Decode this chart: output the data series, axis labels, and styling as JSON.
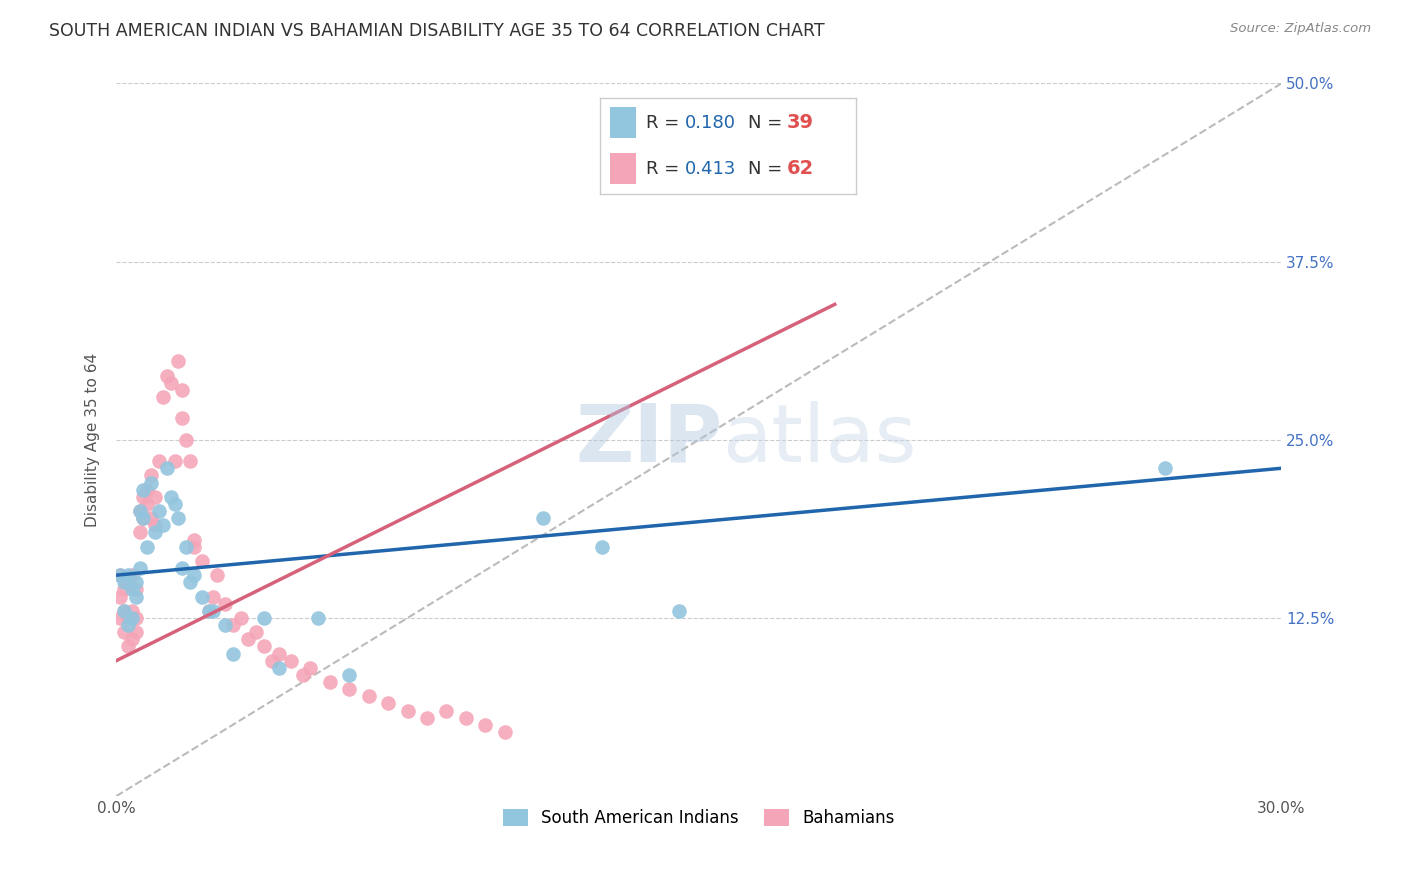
{
  "title": "SOUTH AMERICAN INDIAN VS BAHAMIAN DISABILITY AGE 35 TO 64 CORRELATION CHART",
  "source": "Source: ZipAtlas.com",
  "ylabel": "Disability Age 35 to 64",
  "xmin": 0.0,
  "xmax": 0.3,
  "ymin": 0.0,
  "ymax": 0.5,
  "xticks": [
    0.0,
    0.05,
    0.1,
    0.15,
    0.2,
    0.25,
    0.3
  ],
  "xticklabels": [
    "0.0%",
    "",
    "",
    "",
    "",
    "",
    "30.0%"
  ],
  "yticks": [
    0.0,
    0.125,
    0.25,
    0.375,
    0.5
  ],
  "yticklabels_right": [
    "",
    "12.5%",
    "25.0%",
    "37.5%",
    "50.0%"
  ],
  "blue_color": "#92c5de",
  "pink_color": "#f4a6b8",
  "line_blue": "#2166ac",
  "line_pink": "#d6617a",
  "ref_line_color": "#bbbbbb",
  "grid_color": "#cccccc",
  "tick_color": "#4472c4",
  "R_blue": 0.18,
  "N_blue": 39,
  "R_pink": 0.413,
  "N_pink": 62,
  "legend_label_blue": "South American Indians",
  "legend_label_pink": "Bahamians",
  "blue_line_x": [
    0.0,
    0.3
  ],
  "blue_line_y": [
    0.155,
    0.23
  ],
  "pink_line_x": [
    0.0,
    0.185
  ],
  "pink_line_y": [
    0.095,
    0.345
  ],
  "blue_scatter_x": [
    0.001,
    0.002,
    0.002,
    0.003,
    0.003,
    0.004,
    0.004,
    0.005,
    0.005,
    0.006,
    0.006,
    0.007,
    0.007,
    0.008,
    0.009,
    0.01,
    0.011,
    0.012,
    0.013,
    0.014,
    0.015,
    0.016,
    0.017,
    0.018,
    0.019,
    0.02,
    0.022,
    0.024,
    0.025,
    0.028,
    0.03,
    0.038,
    0.042,
    0.052,
    0.06,
    0.11,
    0.125,
    0.145,
    0.27
  ],
  "blue_scatter_y": [
    0.155,
    0.13,
    0.15,
    0.155,
    0.12,
    0.145,
    0.125,
    0.15,
    0.14,
    0.16,
    0.2,
    0.215,
    0.195,
    0.175,
    0.22,
    0.185,
    0.2,
    0.19,
    0.23,
    0.21,
    0.205,
    0.195,
    0.16,
    0.175,
    0.15,
    0.155,
    0.14,
    0.13,
    0.13,
    0.12,
    0.1,
    0.125,
    0.09,
    0.125,
    0.085,
    0.195,
    0.175,
    0.13,
    0.23
  ],
  "pink_scatter_x": [
    0.001,
    0.001,
    0.001,
    0.002,
    0.002,
    0.002,
    0.003,
    0.003,
    0.003,
    0.004,
    0.004,
    0.004,
    0.005,
    0.005,
    0.005,
    0.006,
    0.006,
    0.007,
    0.007,
    0.008,
    0.008,
    0.009,
    0.009,
    0.01,
    0.01,
    0.011,
    0.012,
    0.013,
    0.014,
    0.015,
    0.016,
    0.017,
    0.017,
    0.018,
    0.019,
    0.02,
    0.02,
    0.022,
    0.024,
    0.025,
    0.026,
    0.028,
    0.03,
    0.032,
    0.034,
    0.036,
    0.038,
    0.04,
    0.042,
    0.045,
    0.048,
    0.05,
    0.055,
    0.06,
    0.065,
    0.07,
    0.075,
    0.08,
    0.085,
    0.09,
    0.095,
    0.1
  ],
  "pink_scatter_y": [
    0.14,
    0.155,
    0.125,
    0.145,
    0.13,
    0.115,
    0.15,
    0.125,
    0.105,
    0.155,
    0.13,
    0.11,
    0.145,
    0.125,
    0.115,
    0.2,
    0.185,
    0.21,
    0.195,
    0.215,
    0.205,
    0.225,
    0.195,
    0.21,
    0.19,
    0.235,
    0.28,
    0.295,
    0.29,
    0.235,
    0.305,
    0.285,
    0.265,
    0.25,
    0.235,
    0.18,
    0.175,
    0.165,
    0.13,
    0.14,
    0.155,
    0.135,
    0.12,
    0.125,
    0.11,
    0.115,
    0.105,
    0.095,
    0.1,
    0.095,
    0.085,
    0.09,
    0.08,
    0.075,
    0.07,
    0.065,
    0.06,
    0.055,
    0.06,
    0.055,
    0.05,
    0.045
  ]
}
